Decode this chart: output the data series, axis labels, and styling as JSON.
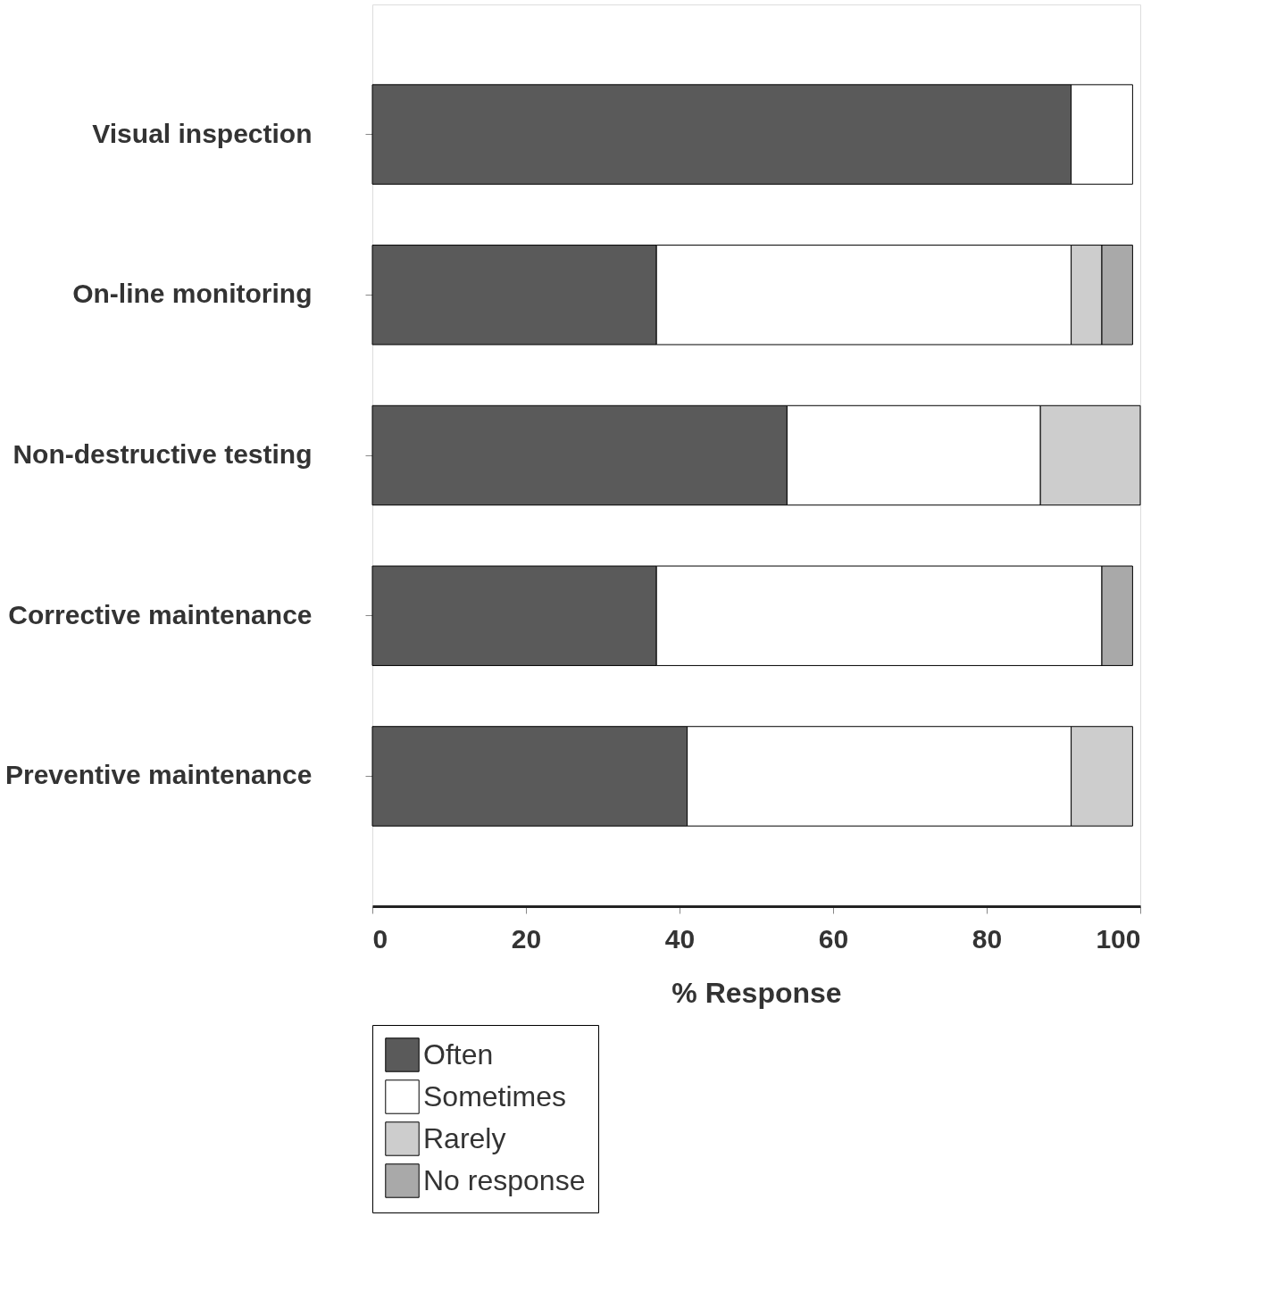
{
  "chart_data": {
    "type": "bar",
    "orientation": "horizontal",
    "stacked": true,
    "xlabel": "% Response",
    "categories": [
      "Visual inspection",
      "On-line monitoring",
      "Non-destructive testing",
      "Corrective maintenance",
      "Preventive maintenance"
    ],
    "series": [
      {
        "name": "Often",
        "color": "#5a5a5a",
        "values": [
          91,
          37,
          54,
          37,
          41
        ]
      },
      {
        "name": "Sometimes",
        "color": "#ffffff",
        "values": [
          8,
          54,
          33,
          58,
          50
        ]
      },
      {
        "name": "Rarely",
        "color": "#cdcdcd",
        "values": [
          null,
          4,
          13,
          null,
          8
        ]
      },
      {
        "name": "No response",
        "color": "#a9a9a9",
        "values": [
          null,
          4,
          null,
          4,
          null
        ]
      }
    ],
    "xlim": [
      0,
      100
    ],
    "xticks": [
      0,
      20,
      40,
      60,
      80,
      100
    ],
    "grid": false,
    "legend": "bottom"
  }
}
